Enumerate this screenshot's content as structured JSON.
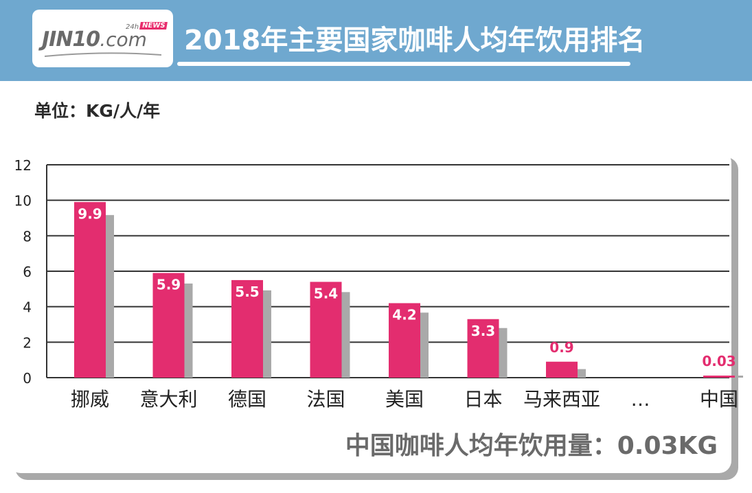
{
  "header": {
    "logo": {
      "brand_main": "JIN10",
      "brand_suffix": ".com",
      "tag_24h": "24h",
      "tag_news": "NEWS"
    },
    "title": "2018年主要国家咖啡人均年饮用排名"
  },
  "unit_label": "单位：KG/人/年",
  "footnote": "中国咖啡人均年饮用量：0.03KG",
  "colors": {
    "header_bg": "#6fa8cf",
    "bar": "#e32d6f",
    "bar_shadow": "#a9a9a9",
    "gridline": "#333333"
  },
  "chart_data": {
    "type": "bar",
    "categories": [
      "挪威",
      "意大利",
      "德国",
      "法国",
      "美国",
      "日本",
      "马来西亚",
      "…",
      "中国"
    ],
    "values": [
      9.9,
      5.9,
      5.5,
      5.4,
      4.2,
      3.3,
      0.9,
      null,
      0.03
    ],
    "data_labels": [
      "9.9",
      "5.9",
      "5.5",
      "5.4",
      "4.2",
      "3.3",
      "0.9",
      "",
      "0.03"
    ],
    "ylim": [
      0,
      12
    ],
    "yticks": [
      0,
      2,
      4,
      6,
      8,
      10,
      12
    ],
    "grid": true,
    "title": "",
    "xlabel": "",
    "ylabel": ""
  }
}
